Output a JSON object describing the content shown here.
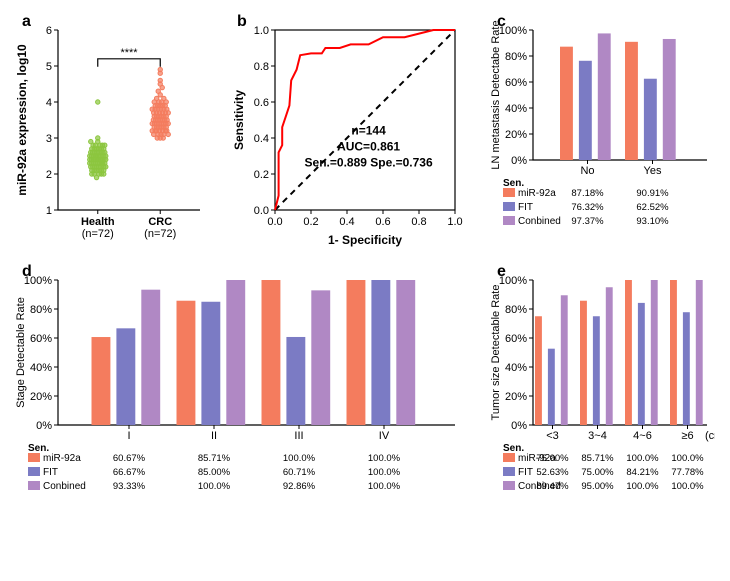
{
  "panels": {
    "a": {
      "label": "a",
      "ylabel": "miR-92a expression, log10",
      "ylim": [
        1,
        6
      ],
      "ytick_step": 1,
      "groups": [
        "Health",
        "CRC"
      ],
      "group_n": [
        "(n=72)",
        "(n=72)"
      ],
      "significance": "****",
      "colors": {
        "Health": "#8cc63f",
        "CRC": "#f47c5e"
      },
      "health_points": [
        2.4,
        2.1,
        3.0,
        2.5,
        2.3,
        2.7,
        2.0,
        2.6,
        2.9,
        2.2,
        2.4,
        2.5,
        2.1,
        2.3,
        2.8,
        2.4,
        2.2,
        2.6,
        2.0,
        2.5,
        2.3,
        2.7,
        1.9,
        2.4,
        2.2,
        2.6,
        2.5,
        2.3,
        2.8,
        2.1,
        2.4,
        2.7,
        2.2,
        2.5,
        2.0,
        2.3,
        2.6,
        2.4,
        2.9,
        2.2,
        2.5,
        2.1,
        2.7,
        2.3,
        2.8,
        2.4,
        2.6,
        2.0,
        2.5,
        2.2,
        2.4,
        2.7,
        2.3,
        2.6,
        2.1,
        2.5,
        2.8,
        2.4,
        2.3,
        4.0,
        2.6,
        2.2,
        2.7,
        2.5,
        2.0,
        2.4,
        2.8,
        2.3,
        2.6,
        2.1,
        2.5,
        2.2
      ],
      "crc_points": [
        3.4,
        3.8,
        3.2,
        4.2,
        3.5,
        3.0,
        3.7,
        3.3,
        4.5,
        3.6,
        3.1,
        3.9,
        3.4,
        3.2,
        4.0,
        3.5,
        3.8,
        3.3,
        3.6,
        3.0,
        4.1,
        3.4,
        3.7,
        3.2,
        3.9,
        3.5,
        3.1,
        4.8,
        3.3,
        3.8,
        3.4,
        3.6,
        3.2,
        4.0,
        3.5,
        3.9,
        3.3,
        3.7,
        3.1,
        4.3,
        3.4,
        3.8,
        3.2,
        3.6,
        3.5,
        4.0,
        3.3,
        3.9,
        3.4,
        3.7,
        3.1,
        4.4,
        3.2,
        3.8,
        3.5,
        3.6,
        3.3,
        4.9,
        3.4,
        3.9,
        3.0,
        3.7,
        3.2,
        4.1,
        3.5,
        3.8,
        4.6,
        3.6,
        3.4,
        4.0,
        3.1,
        3.7
      ]
    },
    "b": {
      "label": "b",
      "xlabel": "1- Specificity",
      "ylabel": "Sensitivity",
      "xlim": [
        0,
        1
      ],
      "ylim": [
        0,
        1
      ],
      "tick_step": 0.2,
      "annotations": [
        "n=144",
        "AUC=0.861",
        "Sen.=0.889 Spe.=0.736"
      ],
      "roc_points": [
        [
          0,
          0
        ],
        [
          0.02,
          0.08
        ],
        [
          0.02,
          0.18
        ],
        [
          0.02,
          0.32
        ],
        [
          0.04,
          0.36
        ],
        [
          0.04,
          0.46
        ],
        [
          0.06,
          0.52
        ],
        [
          0.08,
          0.58
        ],
        [
          0.09,
          0.72
        ],
        [
          0.12,
          0.78
        ],
        [
          0.14,
          0.86
        ],
        [
          0.2,
          0.87
        ],
        [
          0.26,
          0.87
        ],
        [
          0.28,
          0.9
        ],
        [
          0.36,
          0.9
        ],
        [
          0.42,
          0.92
        ],
        [
          0.52,
          0.92
        ],
        [
          0.6,
          0.96
        ],
        [
          0.72,
          0.96
        ],
        [
          0.8,
          0.98
        ],
        [
          0.88,
          1.0
        ],
        [
          1.0,
          1.0
        ]
      ]
    },
    "c": {
      "label": "c",
      "ylabel": "LN metastasis Detectabe Rate",
      "ylim": [
        0,
        100
      ],
      "ytick_step": 20,
      "categories": [
        "No",
        "Yes"
      ],
      "series": [
        "miR-92a",
        "FIT",
        "Conbined"
      ],
      "colors": {
        "miR-92a": "#f47c5e",
        "FIT": "#7b7bc4",
        "Conbined": "#b088c4"
      },
      "values": {
        "No": {
          "miR-92a": 87.18,
          "FIT": 76.32,
          "Conbined": 97.37
        },
        "Yes": {
          "miR-92a": 90.91,
          "FIT": 62.52,
          "Conbined": 93.1
        }
      },
      "value_labels": {
        "No": {
          "miR-92a": "87.18%",
          "FIT": "76.32%",
          "Conbined": "97.37%"
        },
        "Yes": {
          "miR-92a": "90.91%",
          "FIT": "62.52%",
          "Conbined": "93.10%"
        }
      }
    },
    "d": {
      "label": "d",
      "ylabel": "Stage Detectable Rate",
      "ylim": [
        0,
        100
      ],
      "ytick_step": 20,
      "categories": [
        "I",
        "II",
        "III",
        "IV"
      ],
      "series": [
        "miR-92a",
        "FIT",
        "Conbined"
      ],
      "colors": {
        "miR-92a": "#f47c5e",
        "FIT": "#7b7bc4",
        "Conbined": "#b088c4"
      },
      "values": {
        "I": {
          "miR-92a": 60.67,
          "FIT": 66.67,
          "Conbined": 93.33
        },
        "II": {
          "miR-92a": 85.71,
          "FIT": 85.0,
          "Conbined": 100.0
        },
        "III": {
          "miR-92a": 100.0,
          "FIT": 60.71,
          "Conbined": 92.86
        },
        "IV": {
          "miR-92a": 100.0,
          "FIT": 100.0,
          "Conbined": 100.0
        }
      },
      "value_labels": {
        "I": {
          "miR-92a": "60.67%",
          "FIT": "66.67%",
          "Conbined": "93.33%"
        },
        "II": {
          "miR-92a": "85.71%",
          "FIT": "85.00%",
          "Conbined": "100.0%"
        },
        "III": {
          "miR-92a": "100.0%",
          "FIT": "60.71%",
          "Conbined": "92.86%"
        },
        "IV": {
          "miR-92a": "100.0%",
          "FIT": "100.0%",
          "Conbined": "100.0%"
        }
      }
    },
    "e": {
      "label": "e",
      "ylabel": "Tumor size Detectable Rate",
      "ylim": [
        0,
        100
      ],
      "ytick_step": 20,
      "categories": [
        "<3",
        "3~4",
        "4~6",
        "≥6"
      ],
      "x_unit": "(cm)",
      "series": [
        "miR-92a",
        "FIT",
        "Conbined"
      ],
      "colors": {
        "miR-92a": "#f47c5e",
        "FIT": "#7b7bc4",
        "Conbined": "#b088c4"
      },
      "values": {
        "<3": {
          "miR-92a": 75.0,
          "FIT": 52.63,
          "Conbined": 89.47
        },
        "3~4": {
          "miR-92a": 85.71,
          "FIT": 75.0,
          "Conbined": 95.0
        },
        "4~6": {
          "miR-92a": 100.0,
          "FIT": 84.21,
          "Conbined": 100.0
        },
        "≥6": {
          "miR-92a": 100.0,
          "FIT": 77.78,
          "Conbined": 100.0
        }
      },
      "value_labels": {
        "<3": {
          "miR-92a": "75.00%",
          "FIT": "52.63%",
          "Conbined": "89.47%"
        },
        "3~4": {
          "miR-92a": "85.71%",
          "FIT": "75.00%",
          "Conbined": "95.00%"
        },
        "4~6": {
          "miR-92a": "100.0%",
          "FIT": "84.21%",
          "Conbined": "100.0%"
        },
        "≥6": {
          "miR-92a": "100.0%",
          "FIT": "77.78%",
          "Conbined": "100.0%"
        }
      }
    }
  },
  "sen_label": "Sen."
}
